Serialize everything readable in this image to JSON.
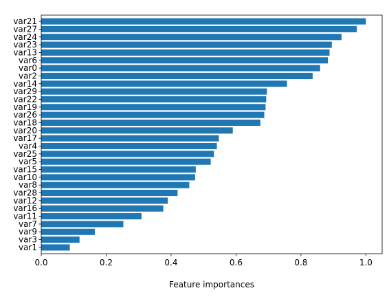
{
  "chart_data": {
    "type": "bar",
    "orientation": "horizontal",
    "xlabel": "Feature importances",
    "ylabel": "",
    "title": "",
    "xlim": [
      0,
      1.05
    ],
    "xticks": [
      "0.0",
      "0.2",
      "0.4",
      "0.6",
      "0.8",
      "1.0"
    ],
    "bar_color": "#1f77b4",
    "grid": false,
    "categories": [
      "var21",
      "var27",
      "var24",
      "var23",
      "var13",
      "var6",
      "var0",
      "var2",
      "var14",
      "var29",
      "var22",
      "var19",
      "var26",
      "var18",
      "var20",
      "var17",
      "var4",
      "var25",
      "var5",
      "var15",
      "var10",
      "var8",
      "var28",
      "var12",
      "var16",
      "var11",
      "var7",
      "var9",
      "var3",
      "var1"
    ],
    "values": [
      1.0,
      0.972,
      0.925,
      0.895,
      0.888,
      0.883,
      0.859,
      0.836,
      0.757,
      0.695,
      0.693,
      0.691,
      0.687,
      0.675,
      0.59,
      0.547,
      0.541,
      0.532,
      0.522,
      0.476,
      0.474,
      0.456,
      0.42,
      0.39,
      0.376,
      0.309,
      0.253,
      0.165,
      0.118,
      0.088
    ]
  }
}
